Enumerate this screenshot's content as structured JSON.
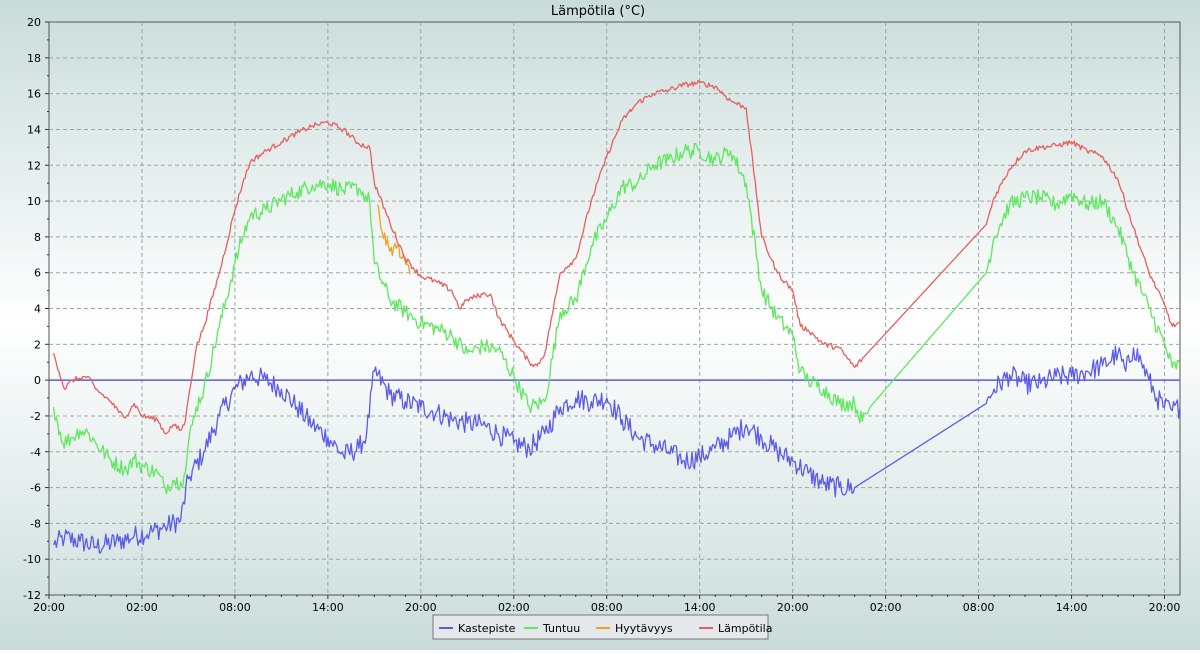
{
  "chart_data": {
    "type": "line",
    "title": "Lämpötila (°C)",
    "xlabel": "",
    "ylabel": "",
    "ylim": [
      -12,
      20
    ],
    "yticks": [
      -12,
      -10,
      -8,
      -6,
      -4,
      -2,
      0,
      2,
      4,
      6,
      8,
      10,
      12,
      14,
      16,
      18,
      20
    ],
    "xlim": [
      0,
      73
    ],
    "xticks": [
      {
        "t": 0,
        "label": "20:00"
      },
      {
        "t": 6,
        "label": "02:00"
      },
      {
        "t": 12,
        "label": "08:00"
      },
      {
        "t": 18,
        "label": "14:00"
      },
      {
        "t": 24,
        "label": "20:00"
      },
      {
        "t": 30,
        "label": "02:00"
      },
      {
        "t": 36,
        "label": "08:00"
      },
      {
        "t": 42,
        "label": "14:00"
      },
      {
        "t": 48,
        "label": "20:00"
      },
      {
        "t": 54,
        "label": "02:00"
      },
      {
        "t": 60,
        "label": "08:00"
      },
      {
        "t": 66,
        "label": "14:00"
      },
      {
        "t": 72,
        "label": "20:00"
      }
    ],
    "grid": true,
    "legend_position": "bottom-center",
    "series": [
      {
        "name": "Kastepiste",
        "color": "#5b5bea",
        "points": [
          [
            0.3,
            -9.2
          ],
          [
            1,
            -8.8
          ],
          [
            2,
            -9
          ],
          [
            3,
            -9.3
          ],
          [
            4.5,
            -9
          ],
          [
            5.5,
            -8.7
          ],
          [
            6.5,
            -8.5
          ],
          [
            7.5,
            -8.2
          ],
          [
            8.5,
            -7.8
          ],
          [
            9,
            -5.5
          ],
          [
            10,
            -4
          ],
          [
            11,
            -2
          ],
          [
            12,
            -0.5
          ],
          [
            13,
            0.3
          ],
          [
            14,
            0
          ],
          [
            15,
            -0.5
          ],
          [
            16,
            -1.5
          ],
          [
            17,
            -2.5
          ],
          [
            18,
            -3.2
          ],
          [
            19,
            -4.2
          ],
          [
            20,
            -3.8
          ],
          [
            20.5,
            -3
          ],
          [
            21,
            0.5
          ],
          [
            22,
            -0.8
          ],
          [
            23,
            -1.2
          ],
          [
            24,
            -1.5
          ],
          [
            25,
            -1.8
          ],
          [
            26,
            -2.2
          ],
          [
            27,
            -2.4
          ],
          [
            28,
            -2.5
          ],
          [
            29,
            -3
          ],
          [
            30,
            -3.5
          ],
          [
            31,
            -3.8
          ],
          [
            32,
            -3
          ],
          [
            33,
            -1.5
          ],
          [
            34,
            -1
          ],
          [
            35,
            -1.2
          ],
          [
            36,
            -1
          ],
          [
            37,
            -2.2
          ],
          [
            38,
            -3.2
          ],
          [
            39,
            -3.6
          ],
          [
            40,
            -4
          ],
          [
            41,
            -4.5
          ],
          [
            42,
            -4.3
          ],
          [
            43,
            -3.8
          ],
          [
            44,
            -3.2
          ],
          [
            45,
            -2.5
          ],
          [
            46,
            -3.2
          ],
          [
            47,
            -4
          ],
          [
            48,
            -4.5
          ],
          [
            49,
            -5.2
          ],
          [
            50,
            -5.8
          ],
          [
            51,
            -6
          ],
          [
            52,
            -6
          ],
          [
            60.5,
            -1.3
          ],
          [
            61,
            -0.5
          ],
          [
            62,
            0.3
          ],
          [
            63,
            -0.2
          ],
          [
            64,
            -0.2
          ],
          [
            65,
            0.2
          ],
          [
            66,
            0.2
          ],
          [
            67,
            0.5
          ],
          [
            68,
            0.8
          ],
          [
            69,
            1.5
          ],
          [
            69.5,
            0.5
          ],
          [
            70,
            1.8
          ],
          [
            70.5,
            1
          ],
          [
            71,
            0
          ],
          [
            71.5,
            -1
          ],
          [
            72,
            -1.5
          ],
          [
            72.5,
            -1.7
          ],
          [
            73,
            -1.5
          ]
        ]
      },
      {
        "name": "Tuntuu",
        "color": "#5de85d",
        "points": [
          [
            0.3,
            -1.5
          ],
          [
            0.9,
            -3.5
          ],
          [
            1.5,
            -3.2
          ],
          [
            2,
            -2.8
          ],
          [
            2.5,
            -2.9
          ],
          [
            3,
            -3.5
          ],
          [
            4,
            -4.5
          ],
          [
            5,
            -5
          ],
          [
            5.5,
            -4.4
          ],
          [
            6,
            -4.8
          ],
          [
            7,
            -5.2
          ],
          [
            7.5,
            -6
          ],
          [
            8,
            -5.6
          ],
          [
            8.5,
            -5.7
          ],
          [
            8.8,
            -5.2
          ],
          [
            9,
            -3.5
          ],
          [
            9.5,
            -1.5
          ],
          [
            10,
            -0.5
          ],
          [
            11,
            3
          ],
          [
            12,
            6.5
          ],
          [
            12.5,
            8
          ],
          [
            13,
            9.2
          ],
          [
            14,
            9.5
          ],
          [
            15,
            10.1
          ],
          [
            16,
            10.5
          ],
          [
            17,
            10.9
          ],
          [
            18,
            11
          ],
          [
            19,
            10.6
          ],
          [
            20,
            10.7
          ],
          [
            20.7,
            10
          ],
          [
            21,
            6.5
          ],
          [
            22,
            4.5
          ],
          [
            23,
            3.8
          ],
          [
            24,
            3.2
          ],
          [
            25,
            2.9
          ],
          [
            26,
            2.5
          ],
          [
            27,
            1.5
          ],
          [
            28,
            1.9
          ],
          [
            29,
            1.7
          ],
          [
            30,
            0.2
          ],
          [
            31,
            -1.5
          ],
          [
            32,
            -1.2
          ],
          [
            33,
            3.8
          ],
          [
            34,
            4.5
          ],
          [
            35,
            7.5
          ],
          [
            36,
            9
          ],
          [
            37,
            10.8
          ],
          [
            38,
            11
          ],
          [
            39,
            12
          ],
          [
            40,
            12.3
          ],
          [
            41,
            12.8
          ],
          [
            42,
            12.8
          ],
          [
            43,
            12.3
          ],
          [
            44,
            12.8
          ],
          [
            45,
            11
          ],
          [
            46,
            5
          ],
          [
            47,
            3.5
          ],
          [
            48,
            2.5
          ],
          [
            48.5,
            0.5
          ],
          [
            49,
            0
          ],
          [
            50,
            -0.5
          ],
          [
            51,
            -1.3
          ],
          [
            52,
            -1.3
          ],
          [
            52.5,
            -2.3
          ],
          [
            53,
            -1.5
          ],
          [
            60.5,
            6
          ],
          [
            61,
            8
          ],
          [
            62,
            9.8
          ],
          [
            63,
            10.2
          ],
          [
            64,
            10.2
          ],
          [
            65,
            9.8
          ],
          [
            66,
            10.4
          ],
          [
            67,
            9.8
          ],
          [
            68,
            10
          ],
          [
            69,
            8.5
          ],
          [
            70,
            6
          ],
          [
            71,
            4
          ],
          [
            72,
            2
          ],
          [
            72.5,
            0.7
          ],
          [
            73,
            0.9
          ]
        ]
      },
      {
        "name": "Hyytävyys",
        "color": "#f0a020",
        "points": [
          [
            21.2,
            9.8
          ],
          [
            21.5,
            8.3
          ],
          [
            22,
            7.2
          ],
          [
            22.5,
            7.5
          ],
          [
            22.8,
            6.8
          ],
          [
            23.1,
            6.5
          ],
          [
            23.3,
            5.9
          ]
        ]
      },
      {
        "name": "Lämpötila",
        "color": "#e85e5e",
        "points": [
          [
            0.3,
            1.5
          ],
          [
            1,
            -0.5
          ],
          [
            1.5,
            0
          ],
          [
            2,
            0.1
          ],
          [
            2.5,
            0.2
          ],
          [
            3,
            -0.5
          ],
          [
            4,
            -1.2
          ],
          [
            4.5,
            -1.8
          ],
          [
            5,
            -2
          ],
          [
            5.5,
            -1.3
          ],
          [
            6,
            -2
          ],
          [
            7,
            -2.2
          ],
          [
            7.5,
            -3
          ],
          [
            8,
            -2.5
          ],
          [
            8.5,
            -2.8
          ],
          [
            8.8,
            -2.3
          ],
          [
            9,
            -1
          ],
          [
            9.5,
            1.8
          ],
          [
            10,
            3
          ],
          [
            11,
            6
          ],
          [
            12,
            9.5
          ],
          [
            12.5,
            11
          ],
          [
            13,
            12.2
          ],
          [
            14,
            12.8
          ],
          [
            15,
            13.3
          ],
          [
            16,
            13.8
          ],
          [
            17,
            14.2
          ],
          [
            18,
            14.4
          ],
          [
            19,
            14
          ],
          [
            20,
            13.2
          ],
          [
            20.7,
            13
          ],
          [
            21,
            11
          ],
          [
            22,
            8.8
          ],
          [
            23,
            6.8
          ],
          [
            24,
            5.8
          ],
          [
            25,
            5.5
          ],
          [
            26,
            5
          ],
          [
            26.5,
            4
          ],
          [
            27,
            4.5
          ],
          [
            28,
            4.8
          ],
          [
            28.5,
            4.8
          ],
          [
            29,
            3.5
          ],
          [
            30,
            2.2
          ],
          [
            31,
            1
          ],
          [
            31.5,
            0.8
          ],
          [
            32,
            1.5
          ],
          [
            33,
            6
          ],
          [
            34,
            6.8
          ],
          [
            35,
            10
          ],
          [
            36,
            12.5
          ],
          [
            37,
            14.5
          ],
          [
            38,
            15.5
          ],
          [
            39,
            16
          ],
          [
            40,
            16.2
          ],
          [
            41,
            16.5
          ],
          [
            42,
            16.6
          ],
          [
            43,
            16.4
          ],
          [
            44,
            15.6
          ],
          [
            45,
            15.2
          ],
          [
            46,
            8
          ],
          [
            47,
            6
          ],
          [
            48,
            5
          ],
          [
            48.5,
            3
          ],
          [
            49,
            2.8
          ],
          [
            50,
            2
          ],
          [
            51,
            1.8
          ],
          [
            52,
            0.7
          ],
          [
            52.5,
            1.2
          ],
          [
            60.5,
            8.7
          ],
          [
            61,
            10.2
          ],
          [
            62,
            11.8
          ],
          [
            63,
            12.8
          ],
          [
            64,
            13
          ],
          [
            65,
            13.1
          ],
          [
            66,
            13.3
          ],
          [
            67,
            12.8
          ],
          [
            68,
            12.5
          ],
          [
            69,
            11.2
          ],
          [
            70,
            8.5
          ],
          [
            71,
            6
          ],
          [
            72,
            4.2
          ],
          [
            72.5,
            3
          ],
          [
            73,
            3.2
          ]
        ]
      }
    ]
  }
}
